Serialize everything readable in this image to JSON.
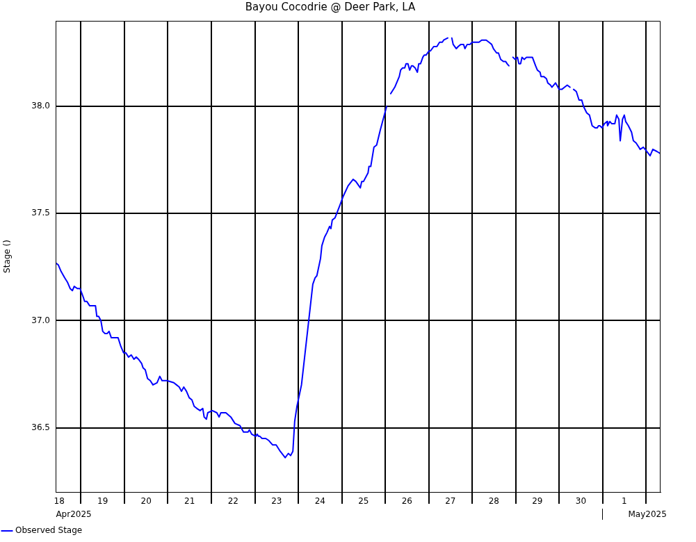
{
  "chart_data": {
    "type": "line",
    "title": "Bayou Cocodrie @ Deer Park, LA",
    "ylabel": "Stage ()",
    "x": [
      "2025-04-18T10:00",
      "2025-04-18T11:30",
      "2025-04-18T13:00",
      "2025-04-18T15:00",
      "2025-04-18T16:30",
      "2025-04-18T18:00",
      "2025-04-18T19:15",
      "2025-04-18T20:15",
      "2025-04-18T22:00",
      "2025-04-18T23:30",
      "2025-04-19T01:15",
      "2025-04-19T02:00",
      "2025-04-19T03:15",
      "2025-04-19T04:45",
      "2025-04-19T08:00",
      "2025-04-19T08:45",
      "2025-04-19T09:45",
      "2025-04-19T11:00",
      "2025-04-19T12:00",
      "2025-04-19T13:15",
      "2025-04-19T14:30",
      "2025-04-19T15:30",
      "2025-04-19T16:45",
      "2025-04-19T20:30",
      "2025-04-19T22:00",
      "2025-04-19T23:30",
      "2025-04-20T00:45",
      "2025-04-20T02:15",
      "2025-04-20T03:45",
      "2025-04-20T05:15",
      "2025-04-20T06:30",
      "2025-04-20T07:45",
      "2025-04-20T09:30",
      "2025-04-20T10:15",
      "2025-04-20T11:30",
      "2025-04-20T12:45",
      "2025-04-20T14:15",
      "2025-04-20T15:45",
      "2025-04-20T18:00",
      "2025-04-20T19:30",
      "2025-04-20T20:45",
      "2025-04-20T23:30",
      "2025-04-21T03:15",
      "2025-04-21T04:45",
      "2025-04-21T06:15",
      "2025-04-21T07:30",
      "2025-04-21T08:45",
      "2025-04-21T10:15",
      "2025-04-21T11:45",
      "2025-04-21T13:15",
      "2025-04-21T14:30",
      "2025-04-21T16:00",
      "2025-04-21T17:45",
      "2025-04-21T19:15",
      "2025-04-21T20:00",
      "2025-04-21T21:15",
      "2025-04-21T22:00",
      "2025-04-22T00:30",
      "2025-04-22T03:00",
      "2025-04-22T04:15",
      "2025-04-22T05:15",
      "2025-04-22T08:00",
      "2025-04-22T10:45",
      "2025-04-22T13:00",
      "2025-04-22T15:45",
      "2025-04-22T17:45",
      "2025-04-22T20:15",
      "2025-04-22T21:00",
      "2025-04-22T22:15",
      "2025-04-23T00:30",
      "2025-04-23T01:15",
      "2025-04-23T02:00",
      "2025-04-23T02:45",
      "2025-04-23T04:00",
      "2025-04-23T06:00",
      "2025-04-23T07:45",
      "2025-04-23T09:45",
      "2025-04-23T11:45",
      "2025-04-23T14:00",
      "2025-04-23T16:45",
      "2025-04-23T18:30",
      "2025-04-23T19:45",
      "2025-04-23T21:00",
      "2025-04-23T22:00",
      "2025-04-23T23:15",
      "2025-04-24T01:45",
      "2025-04-24T03:45",
      "2025-04-24T05:45",
      "2025-04-24T08:00",
      "2025-04-24T09:15",
      "2025-04-24T10:15",
      "2025-04-24T12:15",
      "2025-04-24T13:00",
      "2025-04-24T14:30",
      "2025-04-24T15:45",
      "2025-04-24T17:15",
      "2025-04-24T18:00",
      "2025-04-24T18:45",
      "2025-04-24T20:15",
      "2025-04-24T23:00",
      "2025-04-25T00:45",
      "2025-04-25T03:30",
      "2025-04-25T06:15",
      "2025-04-25T07:45",
      "2025-04-25T10:15",
      "2025-04-25T11:00",
      "2025-04-25T12:00",
      "2025-04-25T14:30",
      "2025-04-25T15:00",
      "2025-04-25T16:00",
      "2025-04-25T17:45",
      "2025-04-25T19:15",
      "2025-04-25T21:15",
      "2025-04-26T00:45",
      "2025-04-26T02:00",
      "2025-04-26T03:00",
      "2025-04-26T05:15",
      "2025-04-26T07:45",
      "2025-04-26T08:30",
      "2025-04-26T09:30",
      "2025-04-26T10:45",
      "2025-04-26T11:30",
      "2025-04-26T12:30",
      "2025-04-26T13:30",
      "2025-04-26T14:30",
      "2025-04-26T15:15",
      "2025-04-26T16:30",
      "2025-04-26T17:45",
      "2025-04-26T18:30",
      "2025-04-26T19:30",
      "2025-04-26T20:45",
      "2025-04-26T21:30",
      "2025-04-26T22:30",
      "2025-04-27T00:15",
      "2025-04-27T01:00",
      "2025-04-27T02:45",
      "2025-04-27T04:30",
      "2025-04-27T06:00",
      "2025-04-27T07:30",
      "2025-04-27T08:15",
      "2025-04-27T10:30",
      "2025-04-27T11:45",
      "2025-04-27T12:45",
      "2025-04-27T13:30",
      "2025-04-27T15:15",
      "2025-04-27T16:15",
      "2025-04-27T17:45",
      "2025-04-27T19:15",
      "2025-04-27T20:00",
      "2025-04-27T21:15",
      "2025-04-27T22:45",
      "2025-04-28T00:00",
      "2025-04-28T03:45",
      "2025-04-28T05:15",
      "2025-04-28T07:45",
      "2025-04-28T09:15",
      "2025-04-28T10:45",
      "2025-04-28T11:45",
      "2025-04-28T13:30",
      "2025-04-28T14:30",
      "2025-04-28T15:45",
      "2025-04-28T17:15",
      "2025-04-28T18:30",
      "2025-04-28T19:15",
      "2025-04-28T20:15",
      "2025-04-28T21:30",
      "2025-04-28T22:30",
      "2025-04-28T23:45",
      "2025-04-29T01:00",
      "2025-04-29T01:45",
      "2025-04-29T02:45",
      "2025-04-29T03:30",
      "2025-04-29T04:45",
      "2025-04-29T06:00",
      "2025-04-29T09:15",
      "2025-04-29T11:00",
      "2025-04-29T12:00",
      "2025-04-29T13:30",
      "2025-04-29T14:00",
      "2025-04-29T15:30",
      "2025-04-29T17:00",
      "2025-04-29T17:45",
      "2025-04-29T19:15",
      "2025-04-29T20:00",
      "2025-04-29T22:00",
      "2025-04-29T22:45",
      "2025-04-30T00:00",
      "2025-04-30T01:30",
      "2025-04-30T03:00",
      "2025-04-30T04:30",
      "2025-04-30T06:00",
      "2025-04-30T07:00",
      "2025-04-30T08:00",
      "2025-04-30T09:30",
      "2025-04-30T11:00",
      "2025-04-30T12:30",
      "2025-04-30T13:30",
      "2025-04-30T15:15",
      "2025-04-30T16:45",
      "2025-04-30T18:15",
      "2025-04-30T20:00",
      "2025-04-30T21:00",
      "2025-04-30T21:45",
      "2025-04-30T22:30",
      "2025-04-30T23:45",
      "2025-05-01T01:00",
      "2025-05-01T02:30",
      "2025-05-01T02:45",
      "2025-05-01T04:00",
      "2025-05-01T05:00",
      "2025-05-01T06:45",
      "2025-05-01T07:45",
      "2025-05-01T09:00",
      "2025-05-01T09:45",
      "2025-05-01T11:00",
      "2025-05-01T12:00",
      "2025-05-01T12:45",
      "2025-05-01T14:15",
      "2025-05-01T16:00",
      "2025-05-01T17:00",
      "2025-05-01T18:30",
      "2025-05-01T20:00",
      "2025-05-01T20:45",
      "2025-05-01T22:30",
      "2025-05-01T23:30",
      "2025-05-02T02:15",
      "2025-05-02T03:45",
      "2025-05-02T06:00",
      "2025-05-02T08:00"
    ],
    "series": [
      {
        "name": "Observed Stage",
        "color": "#0000ff",
        "values": [
          37.27,
          37.26,
          37.23,
          37.2,
          37.18,
          37.15,
          37.14,
          37.16,
          37.15,
          37.15,
          37.11,
          37.09,
          37.09,
          37.07,
          37.07,
          37.02,
          37.02,
          37.0,
          36.95,
          36.94,
          36.94,
          36.95,
          36.92,
          36.92,
          36.88,
          36.85,
          36.85,
          36.83,
          36.84,
          36.82,
          36.83,
          36.82,
          36.8,
          36.78,
          36.77,
          36.73,
          36.72,
          36.7,
          36.71,
          36.74,
          36.72,
          36.72,
          36.71,
          36.7,
          36.69,
          36.67,
          36.69,
          36.67,
          36.64,
          36.63,
          36.6,
          36.59,
          36.58,
          36.59,
          36.55,
          36.54,
          36.57,
          36.58,
          36.57,
          36.55,
          36.57,
          36.57,
          36.55,
          36.52,
          36.51,
          36.48,
          36.48,
          36.49,
          36.47,
          36.46,
          36.47,
          36.46,
          36.46,
          36.45,
          36.45,
          36.44,
          36.42,
          36.42,
          36.39,
          36.36,
          36.38,
          36.37,
          36.39,
          36.53,
          36.6,
          36.7,
          36.85,
          37.0,
          37.17,
          37.2,
          37.21,
          37.29,
          37.35,
          37.39,
          37.41,
          37.44,
          37.43,
          37.47,
          37.48,
          37.54,
          37.58,
          37.63,
          37.66,
          37.65,
          37.62,
          37.65,
          37.65,
          37.69,
          37.72,
          37.72,
          37.81,
          37.82,
          37.89,
          38.0,
          null,
          38.06,
          38.09,
          38.14,
          38.17,
          38.18,
          38.18,
          38.2,
          38.2,
          38.17,
          38.19,
          38.19,
          38.18,
          38.16,
          38.2,
          38.2,
          38.23,
          38.24,
          38.24,
          38.26,
          38.26,
          38.28,
          38.28,
          38.3,
          38.3,
          38.31,
          38.32,
          null,
          38.32,
          38.29,
          38.27,
          38.28,
          38.29,
          38.29,
          38.27,
          38.29,
          38.29,
          38.3,
          38.3,
          38.31,
          38.31,
          38.3,
          38.29,
          38.27,
          38.25,
          38.25,
          38.22,
          38.21,
          38.21,
          38.2,
          38.19,
          null,
          38.23,
          38.22,
          38.23,
          38.2,
          38.2,
          38.23,
          38.22,
          38.23,
          38.23,
          38.19,
          38.17,
          38.16,
          38.14,
          38.14,
          38.13,
          38.11,
          38.1,
          38.09,
          38.11,
          38.1,
          38.08,
          38.08,
          38.09,
          38.1,
          38.09,
          null,
          38.08,
          38.07,
          38.03,
          38.03,
          38.0,
          37.97,
          37.96,
          37.91,
          37.9,
          37.9,
          37.91,
          37.91,
          37.9,
          37.92,
          37.93,
          37.91,
          37.93,
          37.92,
          37.92,
          37.96,
          37.94,
          37.84,
          37.94,
          37.96,
          37.93,
          37.91,
          37.88,
          37.84,
          37.83,
          37.81,
          37.8,
          37.81,
          37.8,
          37.77,
          37.8,
          37.79,
          37.78
        ]
      }
    ],
    "xlim": [
      "2025-04-18T10:00",
      "2025-05-02T08:00"
    ],
    "xticks": [
      {
        "value": "2025-04-18T12:00",
        "label": "18"
      },
      {
        "value": "2025-04-19",
        "label": null
      },
      {
        "value": "2025-04-19T12:00",
        "label": "19"
      },
      {
        "value": "2025-04-20",
        "label": null
      },
      {
        "value": "2025-04-20T12:00",
        "label": "20"
      },
      {
        "value": "2025-04-21",
        "label": null
      },
      {
        "value": "2025-04-21T12:00",
        "label": "21"
      },
      {
        "value": "2025-04-22",
        "label": null
      },
      {
        "value": "2025-04-22T12:00",
        "label": "22"
      },
      {
        "value": "2025-04-23",
        "label": null
      },
      {
        "value": "2025-04-23T12:00",
        "label": "23"
      },
      {
        "value": "2025-04-24",
        "label": null
      },
      {
        "value": "2025-04-24T12:00",
        "label": "24"
      },
      {
        "value": "2025-04-25",
        "label": null
      },
      {
        "value": "2025-04-25T12:00",
        "label": "25"
      },
      {
        "value": "2025-04-26",
        "label": null
      },
      {
        "value": "2025-04-26T12:00",
        "label": "26"
      },
      {
        "value": "2025-04-27",
        "label": null
      },
      {
        "value": "2025-04-27T12:00",
        "label": "27"
      },
      {
        "value": "2025-04-28",
        "label": null
      },
      {
        "value": "2025-04-28T12:00",
        "label": "28"
      },
      {
        "value": "2025-04-29",
        "label": null
      },
      {
        "value": "2025-04-29T12:00",
        "label": "29"
      },
      {
        "value": "2025-04-30",
        "label": null
      },
      {
        "value": "2025-04-30T12:00",
        "label": "30"
      },
      {
        "value": "2025-05-01",
        "label": null
      },
      {
        "value": "2025-05-01T12:00",
        "label": "1"
      },
      {
        "value": "2025-05-02",
        "label": null
      }
    ],
    "x2lim": [
      "2025-04-18T10:00",
      "2025-05-02T08:00"
    ],
    "x2ticks": [
      {
        "value": "2025-04-18T20:00",
        "label": "Apr2025"
      },
      {
        "value": "2025-05-01",
        "label": null
      },
      {
        "value": "2025-05-02T00:45",
        "label": "May2025"
      }
    ],
    "ylim": [
      36.2,
      38.4
    ],
    "yticks": [
      36.5,
      {
        "value": 37,
        "label": "37.0"
      },
      37.5,
      {
        "value": 38,
        "label": "38.0"
      }
    ],
    "grid": true,
    "legend": "bottom left",
    "marker": "none",
    "line_style": "solid"
  }
}
